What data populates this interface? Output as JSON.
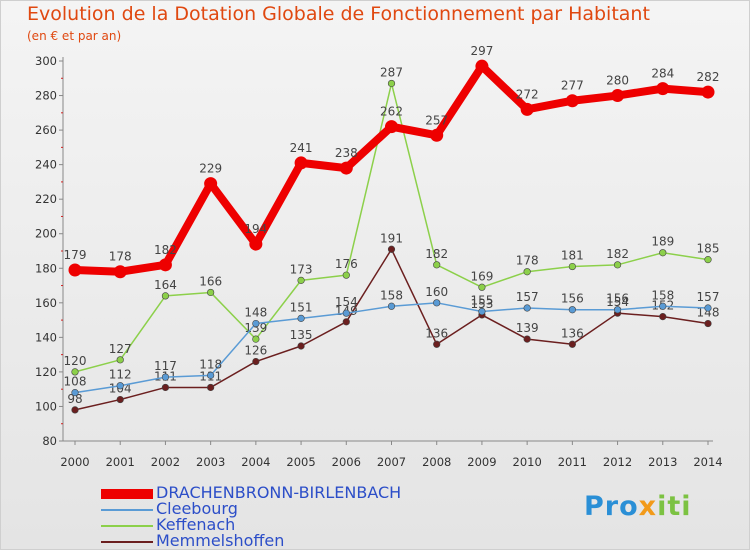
{
  "header": {
    "title": "Evolution de la Dotation Globale de Fonctionnement par Habitant",
    "subtitle": "(en € et par an)"
  },
  "brand": {
    "name": "Proxiti",
    "p1": "Pro",
    "p2": "x",
    "p3": "iti"
  },
  "chart_data": {
    "type": "line",
    "title": "Evolution de la Dotation Globale de Fonctionnement par Habitant",
    "subtitle": "(en € et par an)",
    "xlabel": "",
    "ylabel": "",
    "ylim": [
      80,
      300
    ],
    "yticks": [
      80,
      100,
      120,
      140,
      160,
      180,
      200,
      220,
      240,
      260,
      280,
      300
    ],
    "grid": false,
    "legend_position": "bottom-left",
    "x": [
      2000,
      2001,
      2002,
      2003,
      2004,
      2005,
      2006,
      2007,
      2008,
      2009,
      2010,
      2011,
      2012,
      2013,
      2014
    ],
    "series": [
      {
        "name": "Memmelshoffen",
        "color": "#6b1f1f",
        "values": [
          98,
          104,
          111,
          111,
          126,
          135,
          149,
          191,
          136,
          153,
          139,
          136,
          154,
          152,
          148
        ]
      },
      {
        "name": "Keffenach",
        "color": "#8cd04a",
        "values": [
          120,
          127,
          164,
          166,
          139,
          173,
          176,
          287,
          182,
          169,
          178,
          181,
          182,
          189,
          185
        ]
      },
      {
        "name": "Cleebourg",
        "color": "#5a9bd5",
        "values": [
          108,
          112,
          117,
          118,
          148,
          151,
          154,
          158,
          160,
          155,
          157,
          156,
          156,
          158,
          157
        ]
      },
      {
        "name": "DRACHENBRONN-BIRLENBACH",
        "color": "#ee0000",
        "values": [
          179,
          178,
          182,
          229,
          194,
          241,
          238,
          262,
          257,
          297,
          272,
          277,
          280,
          284,
          282
        ]
      }
    ],
    "legend": [
      "DRACHENBRONN-BIRLENBACH",
      "Cleebourg",
      "Keffenach",
      "Memmelshoffen"
    ]
  }
}
